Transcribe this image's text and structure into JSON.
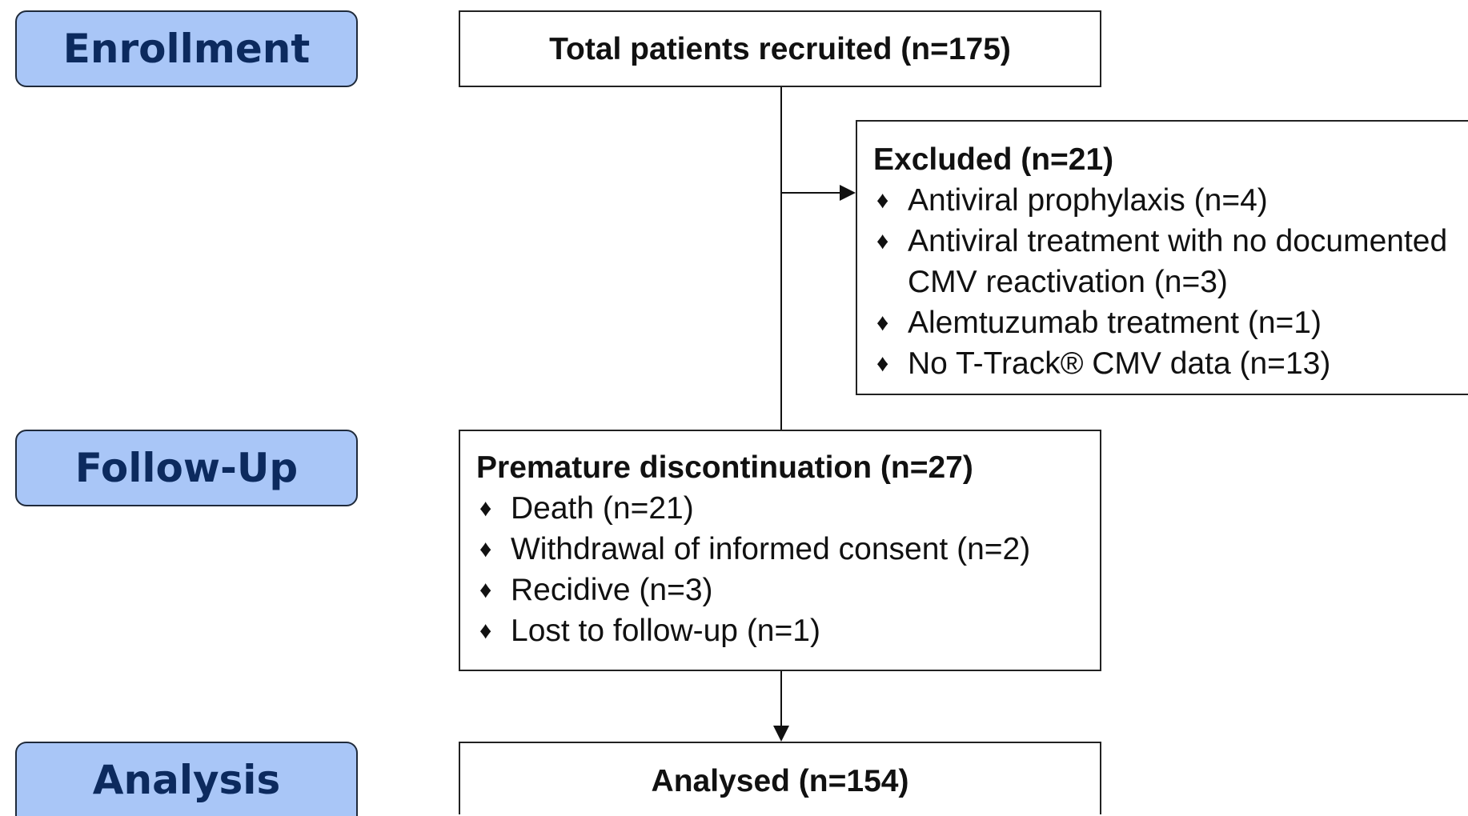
{
  "stages": [
    "Enrollment",
    "Follow-Up",
    "Analysis"
  ],
  "recruited": {
    "title": "Total patients recruited (n=175)"
  },
  "excluded": {
    "title": "Excluded (n=21)",
    "items": [
      "Antiviral prophylaxis (n=4)",
      "Antiviral treatment with no documented CMV reactivation (n=3)",
      "Alemtuzumab treatment (n=1)",
      "No T-Track® CMV data (n=13)"
    ]
  },
  "discontinuation": {
    "title": "Premature discontinuation (n=27)",
    "items": [
      "Death (n=21)",
      "Withdrawal of informed consent (n=2)",
      "Recidive (n=3)",
      "Lost to follow-up (n=1)"
    ]
  },
  "analysed": {
    "title": "Analysed (n=154)"
  }
}
